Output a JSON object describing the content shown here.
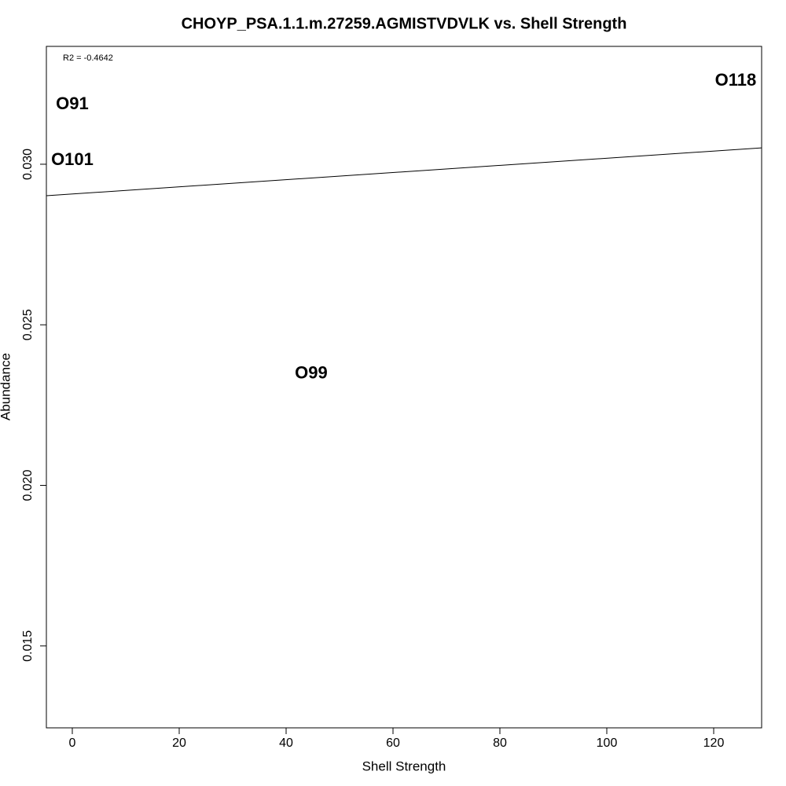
{
  "chart_data": {
    "type": "scatter",
    "title": "CHOYP_PSA.1.1.m.27259.AGMISTVDVLK vs. Shell Strength",
    "xlabel": "Shell Strength",
    "ylabel": "Abundance",
    "annotation": "R2 = -0.4642",
    "labels": [
      "O91",
      "O101",
      "O99",
      "O118"
    ],
    "x": [
      0,
      0,
      44.7,
      124.1
    ],
    "y": [
      0.03186,
      0.03012,
      0.02347,
      0.03259
    ],
    "fit_line": {
      "x": [
        -4.85,
        128.97
      ],
      "y": [
        0.02902,
        0.03051
      ]
    },
    "xlim": [
      -4.85,
      128.97
    ],
    "ylim": [
      0.01245,
      0.03367
    ],
    "xticks": [
      0,
      20,
      40,
      60,
      80,
      100,
      120
    ],
    "yticks": [
      {
        "value": 0.015,
        "label": "0.015"
      },
      {
        "value": 0.02,
        "label": "0.020"
      },
      {
        "value": 0.025,
        "label": "0.025"
      },
      {
        "value": 0.03,
        "label": "0.030"
      }
    ]
  }
}
